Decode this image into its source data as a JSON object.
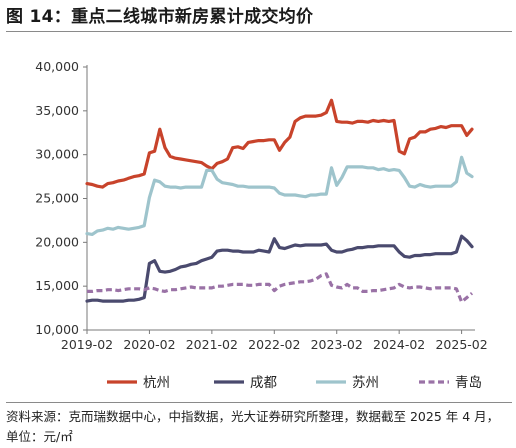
{
  "figure": {
    "title": "图 14：重点二线城市新房累计成交均价",
    "source": "资料来源：克而瑞数据中心，中指数据，光大证券研究所整理，数据截至 2025 年 4 月，",
    "unit": "单位：元/㎡"
  },
  "chart_data": {
    "type": "line",
    "title": "",
    "xlabel": "",
    "ylabel": "",
    "ylim": [
      10000,
      40000
    ],
    "yticks": [
      10000,
      15000,
      20000,
      25000,
      30000,
      35000,
      40000
    ],
    "ytick_labels": [
      "10,000",
      "15,000",
      "20,000",
      "25,000",
      "30,000",
      "35,000",
      "40,000"
    ],
    "x_start": "2019-02",
    "x_end": "2025-04",
    "xticks": [
      "2019-02",
      "2020-02",
      "2021-02",
      "2022-02",
      "2023-02",
      "2024-02",
      "2025-02"
    ],
    "grid": false,
    "legend_position": "bottom",
    "series": [
      {
        "name": "杭州",
        "color": "#c8432b",
        "dash": "solid",
        "x": [
          "2019-02",
          "2019-03",
          "2019-04",
          "2019-05",
          "2019-06",
          "2019-07",
          "2019-08",
          "2019-09",
          "2019-10",
          "2019-11",
          "2019-12",
          "2020-01",
          "2020-02",
          "2020-03",
          "2020-04",
          "2020-05",
          "2020-06",
          "2020-07",
          "2020-08",
          "2020-09",
          "2020-10",
          "2020-11",
          "2020-12",
          "2021-01",
          "2021-02",
          "2021-03",
          "2021-04",
          "2021-05",
          "2021-06",
          "2021-07",
          "2021-08",
          "2021-09",
          "2021-10",
          "2021-11",
          "2021-12",
          "2022-01",
          "2022-02",
          "2022-03",
          "2022-04",
          "2022-05",
          "2022-06",
          "2022-07",
          "2022-08",
          "2022-09",
          "2022-10",
          "2022-11",
          "2022-12",
          "2023-01",
          "2023-02",
          "2023-03",
          "2023-04",
          "2023-05",
          "2023-06",
          "2023-07",
          "2023-08",
          "2023-09",
          "2023-10",
          "2023-11",
          "2023-12",
          "2024-01",
          "2024-02",
          "2024-03",
          "2024-04",
          "2024-05",
          "2024-06",
          "2024-07",
          "2024-08",
          "2024-09",
          "2024-10",
          "2024-11",
          "2024-12",
          "2025-01",
          "2025-02",
          "2025-03",
          "2025-04"
        ],
        "values": [
          26700,
          26600,
          26400,
          26300,
          26700,
          26800,
          27000,
          27100,
          27300,
          27500,
          27600,
          27800,
          30200,
          30400,
          32900,
          30800,
          29800,
          29600,
          29500,
          29400,
          29300,
          29200,
          29100,
          28700,
          28400,
          29000,
          29200,
          29500,
          30800,
          30900,
          30700,
          31400,
          31500,
          31600,
          31600,
          31700,
          31700,
          30500,
          31400,
          32000,
          33800,
          34200,
          34400,
          34400,
          34400,
          34500,
          34800,
          36200,
          33800,
          33700,
          33700,
          33600,
          33800,
          33800,
          33700,
          33900,
          33800,
          33900,
          33800,
          33900,
          30400,
          30100,
          31800,
          32000,
          32600,
          32600,
          32900,
          33000,
          33200,
          33100,
          33300,
          33300,
          33300,
          32200,
          32900
        ]
      },
      {
        "name": "成都",
        "color": "#4a4a6e",
        "dash": "solid",
        "x": [
          "2019-02",
          "2019-03",
          "2019-04",
          "2019-05",
          "2019-06",
          "2019-07",
          "2019-08",
          "2019-09",
          "2019-10",
          "2019-11",
          "2019-12",
          "2020-01",
          "2020-02",
          "2020-03",
          "2020-04",
          "2020-05",
          "2020-06",
          "2020-07",
          "2020-08",
          "2020-09",
          "2020-10",
          "2020-11",
          "2020-12",
          "2021-01",
          "2021-02",
          "2021-03",
          "2021-04",
          "2021-05",
          "2021-06",
          "2021-07",
          "2021-08",
          "2021-09",
          "2021-10",
          "2021-11",
          "2021-12",
          "2022-01",
          "2022-02",
          "2022-03",
          "2022-04",
          "2022-05",
          "2022-06",
          "2022-07",
          "2022-08",
          "2022-09",
          "2022-10",
          "2022-11",
          "2022-12",
          "2023-01",
          "2023-02",
          "2023-03",
          "2023-04",
          "2023-05",
          "2023-06",
          "2023-07",
          "2023-08",
          "2023-09",
          "2023-10",
          "2023-11",
          "2023-12",
          "2024-01",
          "2024-02",
          "2024-03",
          "2024-04",
          "2024-05",
          "2024-06",
          "2024-07",
          "2024-08",
          "2024-09",
          "2024-10",
          "2024-11",
          "2024-12",
          "2025-01",
          "2025-02",
          "2025-03",
          "2025-04"
        ],
        "values": [
          13300,
          13400,
          13400,
          13300,
          13300,
          13300,
          13300,
          13300,
          13400,
          13400,
          13500,
          13700,
          17600,
          17900,
          16700,
          16600,
          16700,
          16900,
          17200,
          17300,
          17500,
          17600,
          17900,
          18100,
          18300,
          19000,
          19100,
          19100,
          19000,
          19000,
          18900,
          18900,
          18900,
          19100,
          19000,
          18900,
          20400,
          19400,
          19300,
          19500,
          19700,
          19600,
          19700,
          19700,
          19700,
          19700,
          19800,
          19100,
          18900,
          18900,
          19100,
          19200,
          19400,
          19400,
          19500,
          19500,
          19600,
          19600,
          19600,
          19600,
          18900,
          18400,
          18300,
          18500,
          18500,
          18600,
          18600,
          18700,
          18700,
          18700,
          18700,
          18900,
          20700,
          20200,
          19500
        ]
      },
      {
        "name": "苏州",
        "color": "#9ec4cc",
        "dash": "solid",
        "x": [
          "2019-02",
          "2019-03",
          "2019-04",
          "2019-05",
          "2019-06",
          "2019-07",
          "2019-08",
          "2019-09",
          "2019-10",
          "2019-11",
          "2019-12",
          "2020-01",
          "2020-02",
          "2020-03",
          "2020-04",
          "2020-05",
          "2020-06",
          "2020-07",
          "2020-08",
          "2020-09",
          "2020-10",
          "2020-11",
          "2020-12",
          "2021-01",
          "2021-02",
          "2021-03",
          "2021-04",
          "2021-05",
          "2021-06",
          "2021-07",
          "2021-08",
          "2021-09",
          "2021-10",
          "2021-11",
          "2021-12",
          "2022-01",
          "2022-02",
          "2022-03",
          "2022-04",
          "2022-05",
          "2022-06",
          "2022-07",
          "2022-08",
          "2022-09",
          "2022-10",
          "2022-11",
          "2022-12",
          "2023-01",
          "2023-02",
          "2023-03",
          "2023-04",
          "2023-05",
          "2023-06",
          "2023-07",
          "2023-08",
          "2023-09",
          "2023-10",
          "2023-11",
          "2023-12",
          "2024-01",
          "2024-02",
          "2024-03",
          "2024-04",
          "2024-05",
          "2024-06",
          "2024-07",
          "2024-08",
          "2024-09",
          "2024-10",
          "2024-11",
          "2024-12",
          "2025-01",
          "2025-02",
          "2025-03",
          "2025-04"
        ],
        "values": [
          21000,
          20900,
          21300,
          21400,
          21600,
          21500,
          21700,
          21600,
          21500,
          21600,
          21700,
          21900,
          25100,
          27100,
          26900,
          26400,
          26300,
          26300,
          26200,
          26300,
          26300,
          26300,
          26300,
          28200,
          28200,
          27200,
          26800,
          26700,
          26600,
          26400,
          26400,
          26300,
          26300,
          26300,
          26300,
          26300,
          26200,
          25600,
          25400,
          25400,
          25400,
          25300,
          25200,
          25400,
          25400,
          25500,
          25500,
          28500,
          26500,
          27400,
          28600,
          28600,
          28600,
          28600,
          28500,
          28500,
          28300,
          28400,
          28200,
          28300,
          28200,
          27400,
          26400,
          26300,
          26600,
          26400,
          26300,
          26400,
          26400,
          26400,
          26400,
          26900,
          29700,
          27900,
          27500
        ]
      },
      {
        "name": "青岛",
        "color": "#9a72a6",
        "dash": "dash",
        "x": [
          "2019-02",
          "2019-03",
          "2019-04",
          "2019-05",
          "2019-06",
          "2019-07",
          "2019-08",
          "2019-09",
          "2019-10",
          "2019-11",
          "2019-12",
          "2020-01",
          "2020-02",
          "2020-03",
          "2020-04",
          "2020-05",
          "2020-06",
          "2020-07",
          "2020-08",
          "2020-09",
          "2020-10",
          "2020-11",
          "2020-12",
          "2021-01",
          "2021-02",
          "2021-03",
          "2021-04",
          "2021-05",
          "2021-06",
          "2021-07",
          "2021-08",
          "2021-09",
          "2021-10",
          "2021-11",
          "2021-12",
          "2022-01",
          "2022-02",
          "2022-03",
          "2022-04",
          "2022-05",
          "2022-06",
          "2022-07",
          "2022-08",
          "2022-09",
          "2022-10",
          "2022-11",
          "2022-12",
          "2023-01",
          "2023-02",
          "2023-03",
          "2023-04",
          "2023-05",
          "2023-06",
          "2023-07",
          "2023-08",
          "2023-09",
          "2023-10",
          "2023-11",
          "2023-12",
          "2024-01",
          "2024-02",
          "2024-03",
          "2024-04",
          "2024-05",
          "2024-06",
          "2024-07",
          "2024-08",
          "2024-09",
          "2024-10",
          "2024-11",
          "2024-12",
          "2025-01",
          "2025-02",
          "2025-03",
          "2025-04"
        ],
        "values": [
          14400,
          14400,
          14500,
          14500,
          14600,
          14600,
          14500,
          14600,
          14700,
          14700,
          14700,
          14600,
          14800,
          14700,
          14500,
          14400,
          14600,
          14600,
          14700,
          14800,
          14900,
          14800,
          14800,
          14800,
          14800,
          15000,
          15000,
          15100,
          15200,
          15200,
          15200,
          15100,
          15100,
          15200,
          15200,
          15200,
          14500,
          15000,
          15200,
          15300,
          15400,
          15500,
          15500,
          15600,
          15800,
          16200,
          16400,
          15100,
          14900,
          14800,
          15200,
          14800,
          14800,
          14400,
          14400,
          14500,
          14500,
          14600,
          14700,
          14800,
          15200,
          14900,
          14800,
          14900,
          14900,
          14800,
          14700,
          14800,
          14800,
          14800,
          14800,
          14700,
          13200,
          13700,
          14200
        ]
      }
    ]
  }
}
